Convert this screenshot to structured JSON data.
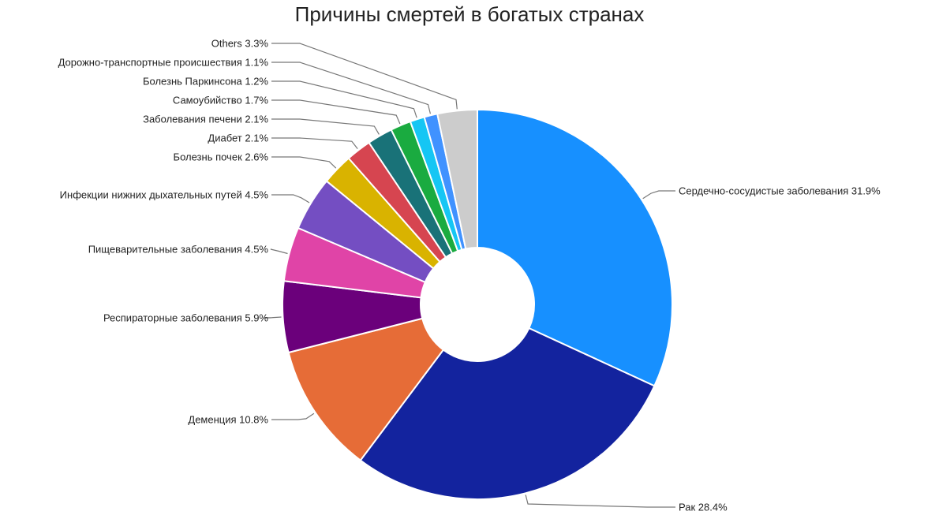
{
  "chart_data": {
    "type": "pie",
    "variant": "donut",
    "title": "Причины смертей в богатых странах",
    "slices": [
      {
        "label": "Сердечно-сосудистые заболевания",
        "value": 31.9,
        "display": "31.9%",
        "color": "#1790FF"
      },
      {
        "label": "Рак",
        "value": 28.4,
        "display": "28.4%",
        "color": "#13239E"
      },
      {
        "label": "Деменция",
        "value": 10.8,
        "display": "10.8%",
        "color": "#E66C37"
      },
      {
        "label": "Респираторные заболевания",
        "value": 5.9,
        "display": "5.9%",
        "color": "#6B007B"
      },
      {
        "label": "Пищеварительные заболевания",
        "value": 4.5,
        "display": "4.5%",
        "color": "#E044A7"
      },
      {
        "label": "Инфекции нижних дыхательных путей",
        "value": 4.5,
        "display": "4.5%",
        "color": "#744EC2"
      },
      {
        "label": "Болезнь почек",
        "value": 2.6,
        "display": "2.6%",
        "color": "#D9B300"
      },
      {
        "label": "Диабет",
        "value": 2.1,
        "display": "2.1%",
        "color": "#D64550"
      },
      {
        "label": "Заболевания печени",
        "value": 2.1,
        "display": "2.1%",
        "color": "#197278"
      },
      {
        "label": "Самоубийство",
        "value": 1.7,
        "display": "1.7%",
        "color": "#1AAB40"
      },
      {
        "label": "Болезнь Паркинсона",
        "value": 1.2,
        "display": "1.2%",
        "color": "#15C6F4"
      },
      {
        "label": "Дорожно-транспортные происшествия",
        "value": 1.1,
        "display": "1.1%",
        "color": "#4092FF"
      },
      {
        "label": "Others",
        "value": 3.3,
        "display": "3.3%",
        "color": "#CCCCCC"
      }
    ]
  }
}
